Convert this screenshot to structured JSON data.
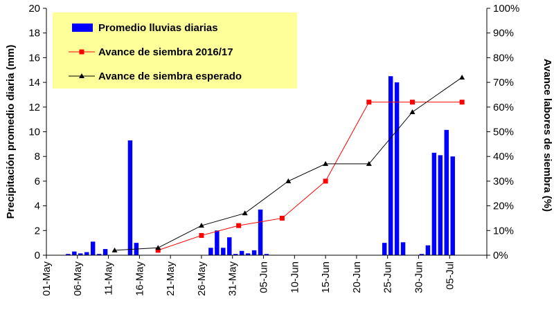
{
  "chart_data": {
    "type": "bar",
    "x_categories": [
      "01-May",
      "06-May",
      "11-May",
      "16-May",
      "21-May",
      "26-May",
      "31-May",
      "05-Jun",
      "10-Jun",
      "15-Jun",
      "20-Jun",
      "25-Jun",
      "30-Jun",
      "05-Jul"
    ],
    "left_axis": {
      "label": "Precipitación promedio diaria (mm)",
      "ylim": [
        0,
        20
      ],
      "ticks": [
        "0",
        "2",
        "4",
        "6",
        "8",
        "10",
        "12",
        "14",
        "16",
        "18",
        "20"
      ]
    },
    "right_axis": {
      "label": "Avance labores de siembra (%)",
      "ylim": [
        0,
        100
      ],
      "ticks": [
        "0%",
        "10%",
        "20%",
        "30%",
        "40%",
        "50%",
        "60%",
        "70%",
        "80%",
        "90%",
        "100%"
      ]
    },
    "series": [
      {
        "name": "Promedio lluvias diarias",
        "type": "bar",
        "axis": "left",
        "color": "#0000ff",
        "points": [
          {
            "x": "2016-05-04",
            "y": 0.1
          },
          {
            "x": "2016-05-05",
            "y": 0.3
          },
          {
            "x": "2016-05-06",
            "y": 0.15
          },
          {
            "x": "2016-05-07",
            "y": 0.25
          },
          {
            "x": "2016-05-08",
            "y": 1.1
          },
          {
            "x": "2016-05-09",
            "y": 0.1
          },
          {
            "x": "2016-05-10",
            "y": 0.5
          },
          {
            "x": "2016-05-14",
            "y": 9.3
          },
          {
            "x": "2016-05-15",
            "y": 1.0
          },
          {
            "x": "2016-05-27",
            "y": 0.6
          },
          {
            "x": "2016-05-28",
            "y": 2.0
          },
          {
            "x": "2016-05-29",
            "y": 0.6
          },
          {
            "x": "2016-05-30",
            "y": 1.45
          },
          {
            "x": "2016-05-31",
            "y": 0.1
          },
          {
            "x": "2016-06-01",
            "y": 0.35
          },
          {
            "x": "2016-06-02",
            "y": 0.15
          },
          {
            "x": "2016-06-03",
            "y": 0.4
          },
          {
            "x": "2016-06-04",
            "y": 3.7
          },
          {
            "x": "2016-06-05",
            "y": 0.1
          },
          {
            "x": "2016-06-24",
            "y": 1.0
          },
          {
            "x": "2016-06-25",
            "y": 14.5
          },
          {
            "x": "2016-06-26",
            "y": 14.0
          },
          {
            "x": "2016-06-27",
            "y": 1.05
          },
          {
            "x": "2016-06-30",
            "y": 0.1
          },
          {
            "x": "2016-07-01",
            "y": 0.8
          },
          {
            "x": "2016-07-02",
            "y": 8.3
          },
          {
            "x": "2016-07-03",
            "y": 8.1
          },
          {
            "x": "2016-07-04",
            "y": 10.15
          },
          {
            "x": "2016-07-05",
            "y": 8.0
          }
        ]
      },
      {
        "name": "Avance de siembra 2016/17",
        "type": "line",
        "axis": "right",
        "color": "#ff0000",
        "marker": "square",
        "points": [
          {
            "x": "2016-05-19",
            "y": 2
          },
          {
            "x": "2016-05-26",
            "y": 8
          },
          {
            "x": "2016-06-01",
            "y": 12
          },
          {
            "x": "2016-06-08",
            "y": 15
          },
          {
            "x": "2016-06-15",
            "y": 30
          },
          {
            "x": "2016-06-22",
            "y": 62
          },
          {
            "x": "2016-06-29",
            "y": 62
          },
          {
            "x": "2016-07-07",
            "y": 62
          }
        ]
      },
      {
        "name": "Avance de siembra esperado",
        "type": "line",
        "axis": "right",
        "color": "#000000",
        "marker": "triangle",
        "points": [
          {
            "x": "2016-05-12",
            "y": 2
          },
          {
            "x": "2016-05-19",
            "y": 3
          },
          {
            "x": "2016-05-26",
            "y": 12
          },
          {
            "x": "2016-06-02",
            "y": 17
          },
          {
            "x": "2016-06-09",
            "y": 30
          },
          {
            "x": "2016-06-15",
            "y": 37
          },
          {
            "x": "2016-06-22",
            "y": 37
          },
          {
            "x": "2016-06-29",
            "y": 58
          },
          {
            "x": "2016-07-07",
            "y": 72
          }
        ]
      }
    ],
    "legend": {
      "position": "top-left",
      "background": "#ffff99"
    },
    "grid": false
  }
}
